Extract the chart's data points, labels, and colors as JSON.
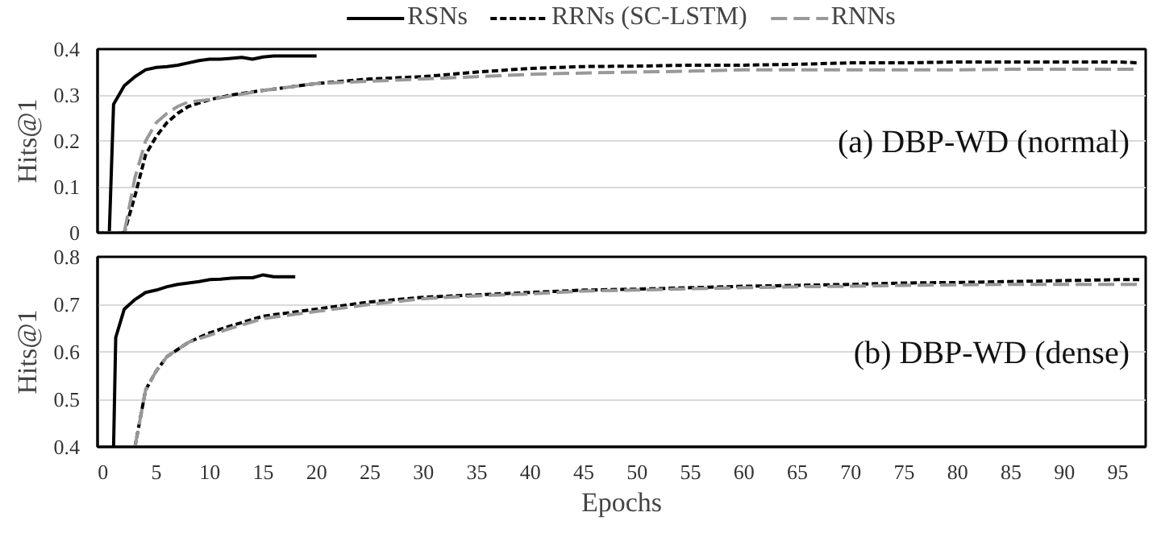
{
  "chart_data": [
    {
      "type": "line",
      "ylabel": "Hits@1",
      "xlim": [
        -0.5,
        97.6
      ],
      "xticks": [
        0,
        5,
        10,
        15,
        20,
        25,
        30,
        35,
        40,
        45,
        50,
        55,
        60,
        65,
        70,
        75,
        80,
        85,
        90,
        95
      ],
      "ylim": [
        0,
        0.4
      ],
      "yticks": [
        0,
        0.1,
        0.2,
        0.3,
        0.4
      ],
      "grid": "y",
      "legend": "top",
      "tick_labels": "y",
      "annotations": [
        "(a) DBP-WD (normal)"
      ],
      "series": [
        {
          "name": "RSNs",
          "color": "#000000",
          "line_style": "solid",
          "x": [
            0,
            0.6,
            1,
            2,
            3,
            4,
            5,
            6,
            7,
            8,
            9,
            10,
            11,
            12,
            13,
            14,
            15,
            16,
            17,
            18,
            19,
            20
          ],
          "values": [
            0,
            0,
            0.28,
            0.32,
            0.34,
            0.355,
            0.36,
            0.362,
            0.365,
            0.37,
            0.375,
            0.378,
            0.378,
            0.38,
            0.382,
            0.378,
            0.383,
            0.385,
            0.385,
            0.385,
            0.385,
            0.385
          ]
        },
        {
          "name": "RRNs (SC-LSTM)",
          "color": "#000000",
          "line_style": "dashed",
          "x": [
            0,
            2,
            3,
            4,
            5,
            6,
            7,
            8,
            10,
            12,
            15,
            20,
            25,
            30,
            35,
            40,
            45,
            50,
            55,
            60,
            65,
            70,
            75,
            80,
            85,
            90,
            95,
            97
          ],
          "values": [
            0,
            0,
            0.08,
            0.17,
            0.21,
            0.24,
            0.26,
            0.275,
            0.29,
            0.3,
            0.31,
            0.325,
            0.335,
            0.34,
            0.35,
            0.358,
            0.362,
            0.363,
            0.365,
            0.365,
            0.367,
            0.37,
            0.37,
            0.372,
            0.372,
            0.372,
            0.372,
            0.37
          ]
        },
        {
          "name": "RNNs",
          "color": "#999999",
          "line_style": "longdash",
          "x": [
            0,
            2,
            3,
            4,
            5,
            6,
            7,
            8,
            10,
            12,
            15,
            20,
            25,
            30,
            35,
            40,
            45,
            50,
            55,
            60,
            65,
            70,
            75,
            80,
            85,
            90,
            95,
            97
          ],
          "values": [
            0,
            0,
            0.12,
            0.2,
            0.24,
            0.26,
            0.275,
            0.285,
            0.29,
            0.298,
            0.31,
            0.325,
            0.33,
            0.335,
            0.34,
            0.345,
            0.348,
            0.35,
            0.352,
            0.355,
            0.355,
            0.355,
            0.355,
            0.355,
            0.356,
            0.356,
            0.356,
            0.356
          ]
        }
      ]
    },
    {
      "type": "line",
      "xlabel": "Epochs",
      "ylabel": "Hits@1",
      "xlim": [
        -0.5,
        97.6
      ],
      "xticks": [
        0,
        5,
        10,
        15,
        20,
        25,
        30,
        35,
        40,
        45,
        50,
        55,
        60,
        65,
        70,
        75,
        80,
        85,
        90,
        95
      ],
      "ylim": [
        0.4,
        0.8
      ],
      "yticks": [
        0.4,
        0.5,
        0.6,
        0.7,
        0.8
      ],
      "grid": "y",
      "annotations": [
        "(b) DBP-WD (dense)"
      ],
      "series": [
        {
          "color": "#000000",
          "line_style": "solid",
          "x": [
            1,
            1.2,
            2,
            3,
            4,
            5,
            6,
            7,
            8,
            9,
            10,
            11,
            12,
            13,
            14,
            15,
            16,
            17,
            18
          ],
          "values": [
            0.4,
            0.63,
            0.69,
            0.71,
            0.725,
            0.73,
            0.737,
            0.742,
            0.745,
            0.748,
            0.752,
            0.753,
            0.755,
            0.756,
            0.756,
            0.762,
            0.758,
            0.758,
            0.758
          ]
        },
        {
          "color": "#000000",
          "line_style": "dashed",
          "x": [
            3,
            4,
            5,
            6,
            8,
            10,
            12,
            15,
            20,
            25,
            30,
            35,
            40,
            45,
            50,
            55,
            60,
            65,
            70,
            75,
            80,
            85,
            90,
            95,
            97
          ],
          "values": [
            0.4,
            0.52,
            0.56,
            0.59,
            0.62,
            0.64,
            0.655,
            0.675,
            0.69,
            0.705,
            0.715,
            0.72,
            0.725,
            0.73,
            0.732,
            0.735,
            0.738,
            0.74,
            0.742,
            0.745,
            0.746,
            0.748,
            0.75,
            0.752,
            0.752
          ]
        },
        {
          "color": "#999999",
          "line_style": "longdash",
          "x": [
            3,
            4,
            5,
            6,
            8,
            10,
            12,
            15,
            20,
            25,
            30,
            35,
            40,
            45,
            50,
            55,
            60,
            65,
            70,
            75,
            80,
            85,
            90,
            95,
            97
          ],
          "values": [
            0.4,
            0.52,
            0.56,
            0.59,
            0.62,
            0.635,
            0.65,
            0.67,
            0.685,
            0.7,
            0.712,
            0.718,
            0.722,
            0.728,
            0.73,
            0.733,
            0.735,
            0.737,
            0.738,
            0.74,
            0.741,
            0.742,
            0.742,
            0.742,
            0.742
          ]
        }
      ]
    }
  ]
}
